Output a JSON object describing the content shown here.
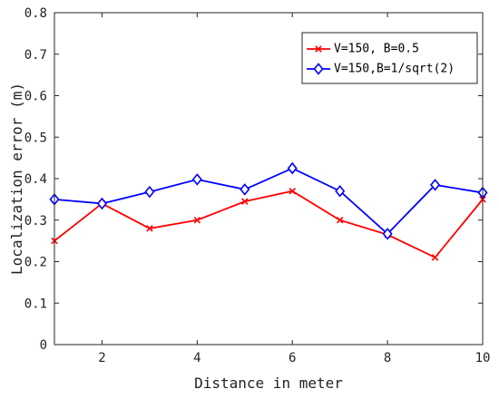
{
  "chart_data": {
    "type": "line",
    "xlabel": "Distance in meter",
    "ylabel": "Localization error (m)",
    "xlim": [
      1,
      10
    ],
    "ylim": [
      0,
      0.8
    ],
    "xticks": [
      2,
      4,
      6,
      8,
      10
    ],
    "yticks": [
      0,
      0.1,
      0.2,
      0.3,
      0.4,
      0.5,
      0.6,
      0.7,
      0.8
    ],
    "xtick_labels": [
      "2",
      "4",
      "6",
      "8",
      "10"
    ],
    "ytick_labels": [
      "0",
      "0.1",
      "0.2",
      "0.3",
      "0.4",
      "0.5",
      "0.6",
      "0.7",
      "0.8"
    ],
    "grid": false,
    "legend_position": "top-right",
    "x": [
      1,
      2,
      3,
      4,
      5,
      6,
      7,
      8,
      9,
      10
    ],
    "series": [
      {
        "name": "V=150, B=0.5",
        "color": "#ff0000",
        "marker": "x",
        "values": [
          0.25,
          0.34,
          0.28,
          0.3,
          0.345,
          0.37,
          0.3,
          0.265,
          0.21,
          0.35
        ]
      },
      {
        "name": "V=150,B=1/sqrt(2)",
        "color": "#0000ff",
        "marker": "diamond",
        "values": [
          0.35,
          0.34,
          0.368,
          0.398,
          0.374,
          0.425,
          0.37,
          0.267,
          0.385,
          0.366
        ]
      }
    ]
  }
}
